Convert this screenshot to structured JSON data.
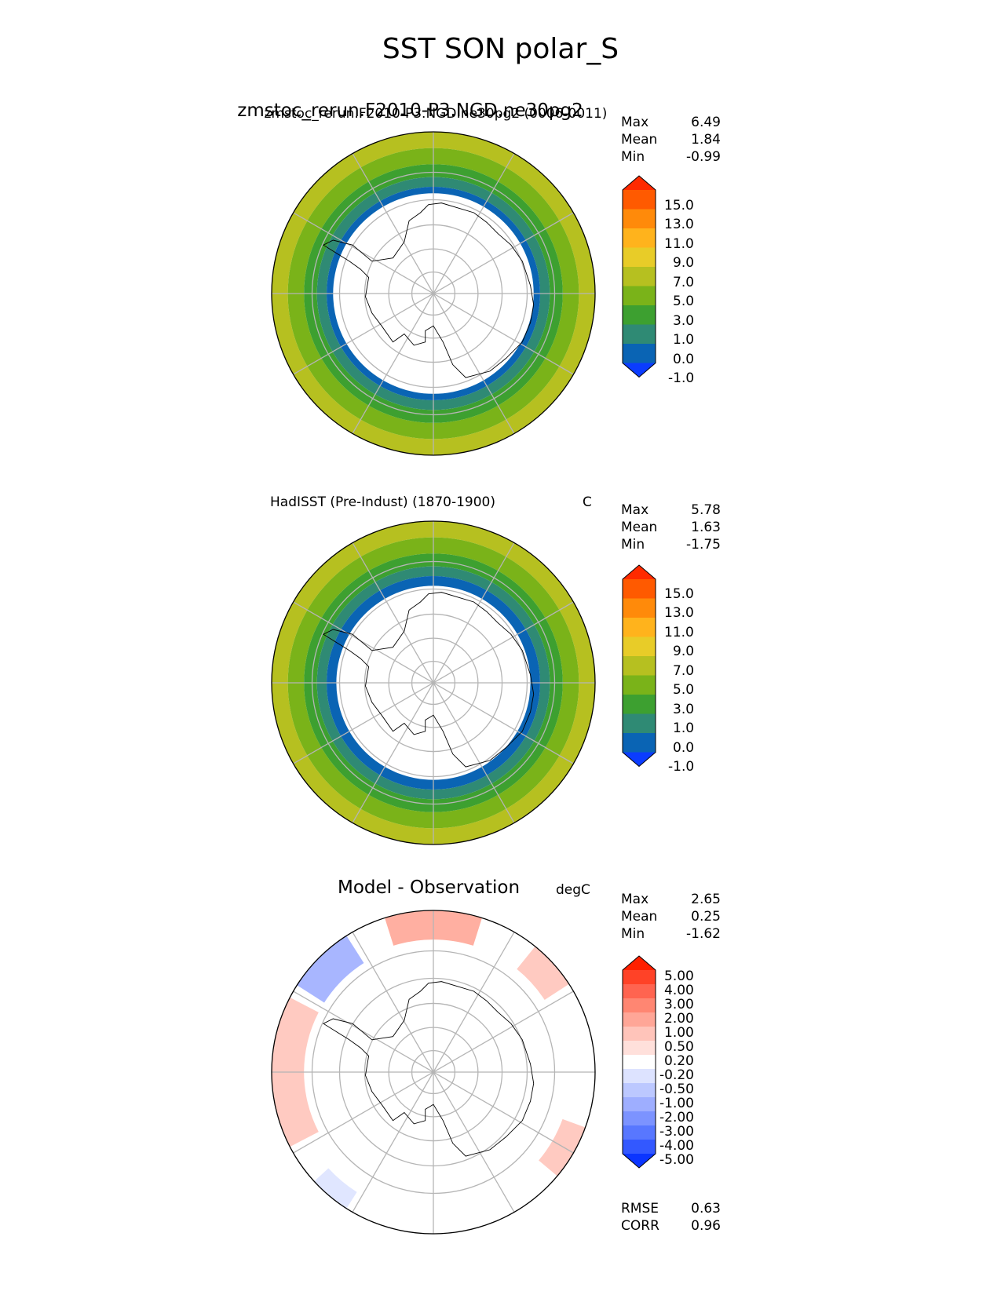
{
  "suptitle": "SST SON polar_S",
  "panels": [
    {
      "title": "zmstoc_rerun.F2010-P3.NGD.ne30pg2",
      "subtitle": "zmstoc_rerun.F2010-P3.NGD.ne30pg2 (0006-0011)",
      "units": "",
      "stats": [
        {
          "label": "Max",
          "value": "6.49"
        },
        {
          "label": "Mean",
          "value": "1.84"
        },
        {
          "label": "Min",
          "value": "-0.99"
        }
      ],
      "colorbar_ticks": [
        "15.0",
        "13.0",
        "11.0",
        "9.0",
        "7.0",
        "5.0",
        "3.0",
        "1.0",
        "0.0",
        "-1.0"
      ],
      "extra_stats": []
    },
    {
      "title": "HadISST (Pre-Indust) (1870-1900)",
      "units": "C",
      "stats": [
        {
          "label": "Max",
          "value": "5.78"
        },
        {
          "label": "Mean",
          "value": "1.63"
        },
        {
          "label": "Min",
          "value": "-1.75"
        }
      ],
      "colorbar_ticks": [
        "15.0",
        "13.0",
        "11.0",
        "9.0",
        "7.0",
        "5.0",
        "3.0",
        "1.0",
        "0.0",
        "-1.0"
      ],
      "extra_stats": []
    },
    {
      "title": "Model - Observation",
      "units": "degC",
      "stats": [
        {
          "label": "Max",
          "value": "2.65"
        },
        {
          "label": "Mean",
          "value": "0.25"
        },
        {
          "label": "Min",
          "value": "-1.62"
        }
      ],
      "colorbar_ticks": [
        "5.00",
        "4.00",
        "3.00",
        "2.00",
        "1.00",
        "0.50",
        "0.20",
        "-0.20",
        "-0.50",
        "-1.00",
        "-2.00",
        "-3.00",
        "-4.00",
        "-5.00"
      ],
      "extra_stats": [
        {
          "label": "RMSE",
          "value": "0.63"
        },
        {
          "label": "CORR",
          "value": "0.96"
        }
      ]
    }
  ],
  "chart_data": [
    {
      "type": "heatmap",
      "title": "zmstoc_rerun.F2010-P3.NGD.ne30pg2",
      "projection": "south-polar-stereographic",
      "variable": "SST",
      "season": "SON",
      "region": "polar_S",
      "stats": {
        "max": 6.49,
        "mean": 1.84,
        "min": -0.99
      },
      "levels": [
        -1.0,
        0.0,
        1.0,
        3.0,
        5.0,
        7.0,
        9.0,
        11.0,
        13.0,
        15.0
      ],
      "colors": [
        "#0b3cff",
        "#0a64b4",
        "#2f8a74",
        "#3da030",
        "#7ab319",
        "#b6c020",
        "#e8cc28",
        "#ffb31c",
        "#ff8a0a",
        "#ff5a00",
        "#ff2a00"
      ],
      "field_bands": [
        {
          "from_frac": 0.9,
          "to_frac": 1.0,
          "value": 6.0
        },
        {
          "from_frac": 0.8,
          "to_frac": 0.9,
          "value": 4.0
        },
        {
          "from_frac": 0.72,
          "to_frac": 0.8,
          "value": 2.0
        },
        {
          "from_frac": 0.66,
          "to_frac": 0.72,
          "value": 0.5
        },
        {
          "from_frac": 0.62,
          "to_frac": 0.66,
          "value": -0.5
        }
      ]
    },
    {
      "type": "heatmap",
      "title": "HadISST (Pre-Indust) (1870-1900)",
      "projection": "south-polar-stereographic",
      "stats": {
        "max": 5.78,
        "mean": 1.63,
        "min": -1.75
      },
      "levels": [
        -1.0,
        0.0,
        1.0,
        3.0,
        5.0,
        7.0,
        9.0,
        11.0,
        13.0,
        15.0
      ],
      "colors": [
        "#0b3cff",
        "#0a64b4",
        "#2f8a74",
        "#3da030",
        "#7ab319",
        "#b6c020",
        "#e8cc28",
        "#ffb31c",
        "#ff8a0a",
        "#ff5a00",
        "#ff2a00"
      ],
      "field_bands": [
        {
          "from_frac": 0.9,
          "to_frac": 1.0,
          "value": 5.5
        },
        {
          "from_frac": 0.8,
          "to_frac": 0.9,
          "value": 3.5
        },
        {
          "from_frac": 0.72,
          "to_frac": 0.8,
          "value": 1.5
        },
        {
          "from_frac": 0.66,
          "to_frac": 0.72,
          "value": 0.5
        },
        {
          "from_frac": 0.6,
          "to_frac": 0.66,
          "value": -0.5
        }
      ]
    },
    {
      "type": "heatmap",
      "title": "Model - Observation",
      "projection": "south-polar-stereographic",
      "stats": {
        "max": 2.65,
        "mean": 0.25,
        "min": -1.62,
        "rmse": 0.63,
        "corr": 0.96
      },
      "levels": [
        -5.0,
        -4.0,
        -3.0,
        -2.0,
        -1.0,
        -0.5,
        -0.2,
        0.2,
        0.5,
        1.0,
        2.0,
        3.0,
        4.0,
        5.0
      ],
      "colors": [
        "#0b35ff",
        "#3358ff",
        "#5877ff",
        "#7c93ff",
        "#9eaeff",
        "#bcc8ff",
        "#dde3ff",
        "#ffffff",
        "#ffe0db",
        "#ffc4ba",
        "#ffa697",
        "#ff8672",
        "#ff6450",
        "#ff4227",
        "#ff2000"
      ],
      "anomaly_patches": [
        {
          "angle_deg": 180,
          "span_deg": 55,
          "from_frac": 0.8,
          "to_frac": 1.0,
          "value": 0.8
        },
        {
          "angle_deg": 225,
          "span_deg": 25,
          "from_frac": 0.8,
          "to_frac": 1.0,
          "value": -1.2
        },
        {
          "angle_deg": 270,
          "span_deg": 35,
          "from_frac": 0.82,
          "to_frac": 0.98,
          "value": 1.6
        },
        {
          "angle_deg": 318,
          "span_deg": 18,
          "from_frac": 0.82,
          "to_frac": 1.0,
          "value": 0.8
        },
        {
          "angle_deg": 30,
          "span_deg": 20,
          "from_frac": 0.85,
          "to_frac": 1.0,
          "value": 0.6
        },
        {
          "angle_deg": 130,
          "span_deg": 15,
          "from_frac": 0.88,
          "to_frac": 1.0,
          "value": -0.3
        }
      ]
    }
  ]
}
